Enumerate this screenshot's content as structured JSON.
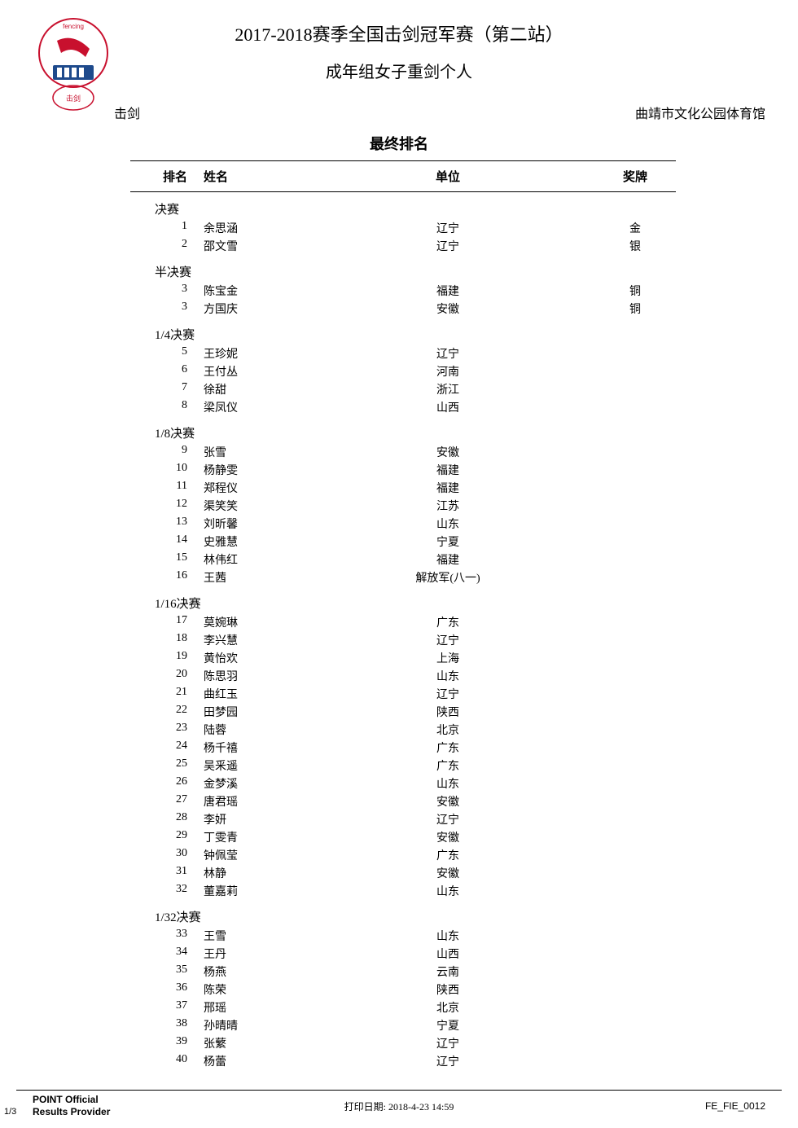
{
  "header": {
    "title_main": "2017-2018赛季全国击剑冠军赛（第二站）",
    "title_sub": "成年组女子重剑个人",
    "sport": "击剑",
    "venue": "曲靖市文化公园体育馆"
  },
  "section_title": "最终排名",
  "columns": {
    "rank": "排名",
    "name": "姓名",
    "unit": "单位",
    "medal": "奖牌"
  },
  "sections": [
    {
      "label": "决赛",
      "rows": [
        {
          "rank": "1",
          "name": "余思涵",
          "unit": "辽宁",
          "medal": "金"
        },
        {
          "rank": "2",
          "name": "邵文雪",
          "unit": "辽宁",
          "medal": "银"
        }
      ]
    },
    {
      "label": "半决赛",
      "rows": [
        {
          "rank": "3",
          "name": "陈宝金",
          "unit": "福建",
          "medal": "铜"
        },
        {
          "rank": "3",
          "name": "方国庆",
          "unit": "安徽",
          "medal": "铜"
        }
      ]
    },
    {
      "label": "1/4决赛",
      "rows": [
        {
          "rank": "5",
          "name": "王珍妮",
          "unit": "辽宁",
          "medal": ""
        },
        {
          "rank": "6",
          "name": "王付丛",
          "unit": "河南",
          "medal": ""
        },
        {
          "rank": "7",
          "name": "徐甜",
          "unit": "浙江",
          "medal": ""
        },
        {
          "rank": "8",
          "name": "梁凤仪",
          "unit": "山西",
          "medal": ""
        }
      ]
    },
    {
      "label": "1/8决赛",
      "rows": [
        {
          "rank": "9",
          "name": "张雪",
          "unit": "安徽",
          "medal": ""
        },
        {
          "rank": "10",
          "name": "杨静雯",
          "unit": "福建",
          "medal": ""
        },
        {
          "rank": "11",
          "name": "郑程仪",
          "unit": "福建",
          "medal": ""
        },
        {
          "rank": "12",
          "name": "渠笑笑",
          "unit": "江苏",
          "medal": ""
        },
        {
          "rank": "13",
          "name": "刘昕馨",
          "unit": "山东",
          "medal": ""
        },
        {
          "rank": "14",
          "name": "史雅慧",
          "unit": "宁夏",
          "medal": ""
        },
        {
          "rank": "15",
          "name": "林伟红",
          "unit": "福建",
          "medal": ""
        },
        {
          "rank": "16",
          "name": "王茜",
          "unit": "解放军(八一)",
          "medal": ""
        }
      ]
    },
    {
      "label": "1/16决赛",
      "rows": [
        {
          "rank": "17",
          "name": "莫婉琳",
          "unit": "广东",
          "medal": ""
        },
        {
          "rank": "18",
          "name": "李兴慧",
          "unit": "辽宁",
          "medal": ""
        },
        {
          "rank": "19",
          "name": "黄怡欢",
          "unit": "上海",
          "medal": ""
        },
        {
          "rank": "20",
          "name": "陈思羽",
          "unit": "山东",
          "medal": ""
        },
        {
          "rank": "21",
          "name": "曲红玉",
          "unit": "辽宁",
          "medal": ""
        },
        {
          "rank": "22",
          "name": "田梦园",
          "unit": "陕西",
          "medal": ""
        },
        {
          "rank": "23",
          "name": "陆蓉",
          "unit": "北京",
          "medal": ""
        },
        {
          "rank": "24",
          "name": "杨千禧",
          "unit": "广东",
          "medal": ""
        },
        {
          "rank": "25",
          "name": "吴釆遥",
          "unit": "广东",
          "medal": ""
        },
        {
          "rank": "26",
          "name": "金梦溪",
          "unit": "山东",
          "medal": ""
        },
        {
          "rank": "27",
          "name": "唐君瑶",
          "unit": "安徽",
          "medal": ""
        },
        {
          "rank": "28",
          "name": "李妍",
          "unit": "辽宁",
          "medal": ""
        },
        {
          "rank": "29",
          "name": "丁雯青",
          "unit": "安徽",
          "medal": ""
        },
        {
          "rank": "30",
          "name": "钟佩莹",
          "unit": "广东",
          "medal": ""
        },
        {
          "rank": "31",
          "name": "林静",
          "unit": "安徽",
          "medal": ""
        },
        {
          "rank": "32",
          "name": "董嘉莉",
          "unit": "山东",
          "medal": ""
        }
      ]
    },
    {
      "label": "1/32决赛",
      "rows": [
        {
          "rank": "33",
          "name": "王雪",
          "unit": "山东",
          "medal": ""
        },
        {
          "rank": "34",
          "name": "王丹",
          "unit": "山西",
          "medal": ""
        },
        {
          "rank": "35",
          "name": "杨燕",
          "unit": "云南",
          "medal": ""
        },
        {
          "rank": "36",
          "name": "陈荣",
          "unit": "陕西",
          "medal": ""
        },
        {
          "rank": "37",
          "name": "邢瑶",
          "unit": "北京",
          "medal": ""
        },
        {
          "rank": "38",
          "name": "孙晴晴",
          "unit": "宁夏",
          "medal": ""
        },
        {
          "rank": "39",
          "name": "张蘩",
          "unit": "辽宁",
          "medal": ""
        },
        {
          "rank": "40",
          "name": "杨蕾",
          "unit": "辽宁",
          "medal": ""
        }
      ]
    }
  ],
  "footer": {
    "page": "1/3",
    "provider": "POINT Official Results Provider",
    "print_date": "打印日期: 2018-4-23 14:59",
    "doc_id": "FE_FIE_0012"
  },
  "colors": {
    "text": "#000000",
    "background": "#ffffff",
    "logo_red": "#c8102e",
    "logo_blue": "#1e4a8c"
  }
}
